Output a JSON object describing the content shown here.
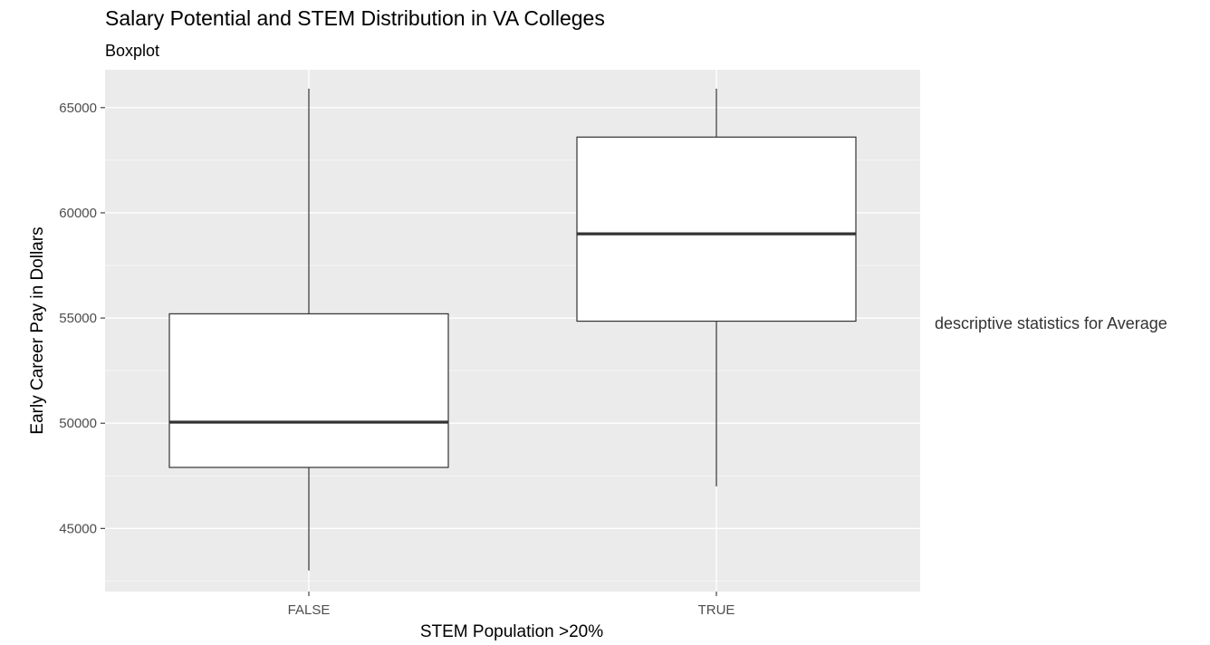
{
  "chart_data": {
    "type": "boxplot",
    "title": "Salary Potential and STEM Distribution in VA Colleges",
    "subtitle": "Boxplot",
    "xlabel": "STEM Population >20%",
    "ylabel": "Early Career Pay in Dollars",
    "ylim": [
      42000,
      66800
    ],
    "yticks": [
      45000,
      50000,
      55000,
      60000,
      65000
    ],
    "grid": true,
    "categories": [
      "FALSE",
      "TRUE"
    ],
    "boxes": [
      {
        "category": "FALSE",
        "min": 43000,
        "q1": 47900,
        "median": 50050,
        "q3": 55200,
        "max": 65900
      },
      {
        "category": "TRUE",
        "min": 47000,
        "q1": 54850,
        "median": 59000,
        "q3": 63600,
        "max": 65900
      }
    ],
    "annotation": "descriptive statistics for Average"
  },
  "colors": {
    "panel": "#ebebeb",
    "grid": "#ffffff",
    "box_fill": "#ffffff",
    "box_line": "#333333"
  }
}
